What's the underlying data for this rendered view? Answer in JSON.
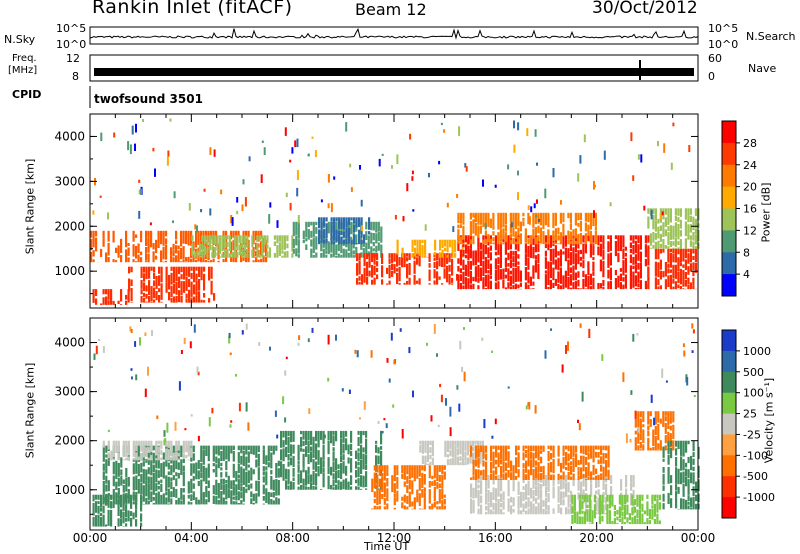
{
  "header": {
    "station": "Rankin Inlet (fitACF)",
    "beam": "Beam 12",
    "date": "30/Oct/2012"
  },
  "top_panels": {
    "nsky_label": "N.Sky",
    "nsearch_label": "N.Search",
    "nsky_ticks": [
      "10^5",
      "10^0"
    ],
    "nsky_right_ticks": [
      "10^5",
      "10^0"
    ],
    "freq_label_1": "Freq.",
    "freq_label_2": "[MHz]",
    "freq_ticks": [
      "12",
      "8"
    ],
    "nave_label": "Nave",
    "nave_ticks": [
      "60",
      "0"
    ],
    "cpid_label": "CPID",
    "cpid_text": "twofsound 3501"
  },
  "x_axis": {
    "label": "Time UT",
    "ticks": [
      "00:00",
      "04:00",
      "08:00",
      "12:00",
      "16:00",
      "20:00",
      "00:00"
    ]
  },
  "chart_data": [
    {
      "type": "heatmap",
      "name": "power",
      "ylabel": "Slant Range [km]",
      "yticks": [
        "4000",
        "3000",
        "2000",
        "1000"
      ],
      "ylim": [
        180,
        4500
      ],
      "xlim_hours": [
        0,
        24
      ],
      "colorbar": {
        "label": "Power [dB]",
        "tick_labels": [
          "28",
          "24",
          "20",
          "16",
          "12",
          "8",
          "4"
        ],
        "colors": [
          "#ff0000",
          "#ff3a00",
          "#ff7a00",
          "#ffaa00",
          "#9dc35a",
          "#4f9a72",
          "#2d6aa8",
          "#0000ff"
        ]
      },
      "bands": [
        {
          "h0": 0.0,
          "h1": 1.5,
          "r0": 250,
          "r1": 600,
          "color": "#ff2a00"
        },
        {
          "h0": 0.0,
          "h1": 7.0,
          "r0": 1200,
          "r1": 1900,
          "color": "#ff5a00"
        },
        {
          "h0": 1.5,
          "h1": 5.0,
          "r0": 300,
          "r1": 1100,
          "color": "#ff3000"
        },
        {
          "h0": 4.0,
          "h1": 8.0,
          "r0": 1300,
          "r1": 1800,
          "color": "#9dc35a"
        },
        {
          "h0": 8.0,
          "h1": 11.5,
          "r0": 1300,
          "r1": 2100,
          "color": "#4f9a72"
        },
        {
          "h0": 9.0,
          "h1": 11.0,
          "r0": 1600,
          "r1": 2200,
          "color": "#2d6aa8"
        },
        {
          "h0": 10.5,
          "h1": 14.5,
          "r0": 700,
          "r1": 1400,
          "color": "#ff2a00"
        },
        {
          "h0": 12.0,
          "h1": 15.0,
          "r0": 1300,
          "r1": 1700,
          "color": "#ffaa00"
        },
        {
          "h0": 14.5,
          "h1": 22.0,
          "r0": 600,
          "r1": 1800,
          "color": "#ff1400"
        },
        {
          "h0": 14.5,
          "h1": 20.0,
          "r0": 1600,
          "r1": 2300,
          "color": "#ff7a00"
        },
        {
          "h0": 22.0,
          "h1": 24.0,
          "r0": 600,
          "r1": 1500,
          "color": "#ff2a00"
        },
        {
          "h0": 22.0,
          "h1": 24.0,
          "r0": 1500,
          "r1": 2400,
          "color": "#9dc35a"
        }
      ]
    },
    {
      "type": "heatmap",
      "name": "velocity",
      "ylabel": "Slant Range [km]",
      "yticks": [
        "4000",
        "3000",
        "2000",
        "1000"
      ],
      "ylim": [
        180,
        4500
      ],
      "xlim_hours": [
        0,
        24
      ],
      "colorbar": {
        "label": "Velocity [m s⁻¹]",
        "tick_labels": [
          "1000",
          "500",
          "100",
          "25",
          "-25",
          "-100",
          "-500",
          "-1000"
        ],
        "colors": [
          "#1a3cc8",
          "#2d6aa8",
          "#3e8a5c",
          "#7ac943",
          "#c8c8c0",
          "#ffa040",
          "#ff7000",
          "#ff3000",
          "#ff0000"
        ]
      },
      "bands": [
        {
          "h0": 0.0,
          "h1": 2.0,
          "r0": 250,
          "r1": 900,
          "color": "#3e8a5c"
        },
        {
          "h0": 0.5,
          "h1": 7.5,
          "r0": 700,
          "r1": 1900,
          "color": "#3e8a5c"
        },
        {
          "h0": 0.5,
          "h1": 4.0,
          "r0": 1600,
          "r1": 2000,
          "color": "#c8c8c0"
        },
        {
          "h0": 7.5,
          "h1": 11.5,
          "r0": 1000,
          "r1": 2200,
          "color": "#3e8a5c"
        },
        {
          "h0": 11.0,
          "h1": 14.0,
          "r0": 600,
          "r1": 1500,
          "color": "#ff7000"
        },
        {
          "h0": 13.0,
          "h1": 15.5,
          "r0": 1500,
          "r1": 2000,
          "color": "#c8c8c0"
        },
        {
          "h0": 15.0,
          "h1": 21.5,
          "r0": 500,
          "r1": 1300,
          "color": "#c8c8c0"
        },
        {
          "h0": 15.0,
          "h1": 20.5,
          "r0": 1200,
          "r1": 1900,
          "color": "#ff7000"
        },
        {
          "h0": 19.0,
          "h1": 22.5,
          "r0": 300,
          "r1": 900,
          "color": "#7ac943"
        },
        {
          "h0": 21.5,
          "h1": 23.0,
          "r0": 1800,
          "r1": 2600,
          "color": "#ff7000"
        },
        {
          "h0": 22.5,
          "h1": 24.0,
          "r0": 600,
          "r1": 2000,
          "color": "#3e8a5c"
        }
      ]
    }
  ]
}
